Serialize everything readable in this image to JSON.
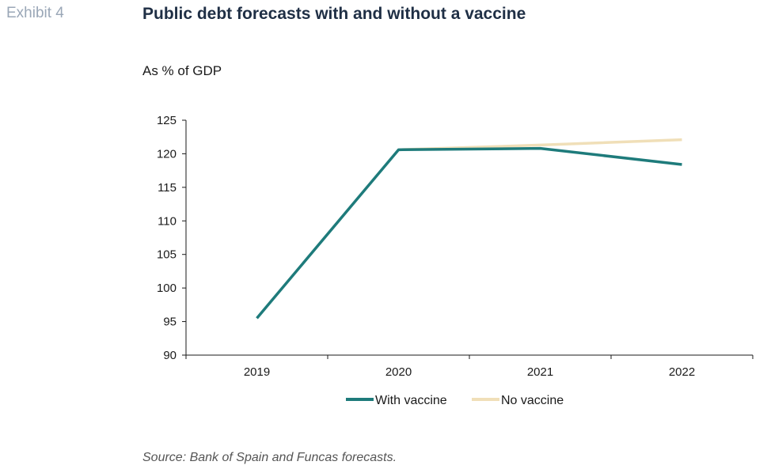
{
  "header": {
    "exhibit": "Exhibit 4",
    "title": "Public debt forecasts with and without a vaccine",
    "unit": "As % of GDP"
  },
  "footer": {
    "source": "Source: Bank of Spain and Funcas forecasts."
  },
  "chart_data": {
    "type": "line",
    "title": "Public debt forecasts with and without a vaccine",
    "ylabel": "As % of GDP",
    "xlabel": "",
    "categories": [
      "2019",
      "2020",
      "2021",
      "2022"
    ],
    "ylim": [
      90,
      125
    ],
    "yticks": [
      90,
      95,
      100,
      105,
      110,
      115,
      120,
      125
    ],
    "grid": false,
    "legend_position": "bottom",
    "series": [
      {
        "name": "With vaccine",
        "color": "#1e7b7b",
        "values": [
          95.5,
          120.6,
          120.8,
          118.4
        ]
      },
      {
        "name": "No vaccine",
        "color": "#f0dfb8",
        "values": [
          null,
          120.6,
          121.3,
          122.1
        ]
      }
    ]
  }
}
